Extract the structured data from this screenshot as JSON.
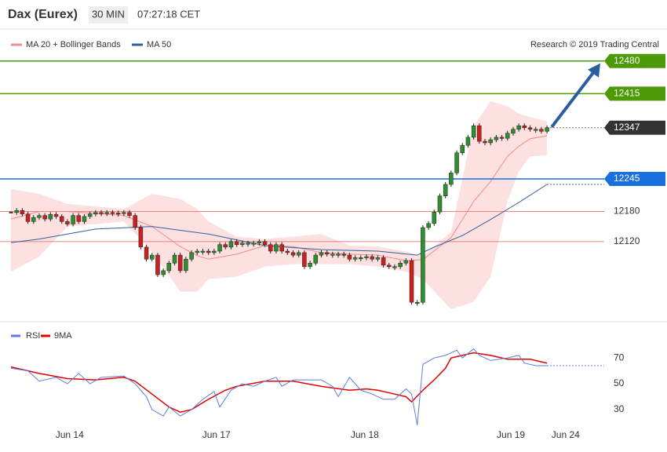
{
  "header": {
    "title": "Dax (Eurex)",
    "interval": "30 MIN",
    "time": "07:27:18 CET",
    "credit": "Research © 2019 Trading Central"
  },
  "chart_data": [
    {
      "type": "candlestick",
      "values": [
        12178,
        12182,
        12175,
        12160,
        12168,
        12172,
        12165,
        12174,
        12170,
        12160,
        12155,
        12172,
        12160,
        12170,
        12175,
        12178,
        12176,
        12178,
        12177,
        12176,
        12178,
        12172,
        12148,
        12109,
        12085,
        12093,
        12054,
        12062,
        12077,
        12093,
        12062,
        12085,
        12098,
        12101,
        12101,
        12098,
        12101,
        12114,
        12109,
        12120,
        12114,
        12117,
        12117,
        12117,
        12120,
        12114,
        12101,
        12114,
        12101,
        12098,
        12093,
        12098,
        12070,
        12077,
        12093,
        12098,
        12095,
        12095,
        12095,
        12093,
        12085,
        12088,
        12088,
        12090,
        12085,
        12088,
        12073,
        12070,
        12070,
        12077,
        12082,
        11999,
        11999,
        12148,
        12156,
        12179,
        12211,
        12234,
        12257,
        12297,
        12312,
        12328,
        12351,
        12320,
        12317,
        12323,
        12328,
        12326,
        12336,
        12344,
        12351,
        12347,
        12344,
        12344,
        12340,
        12347
      ],
      "up_color": "#2f8f2f",
      "down_color": "#cc1f1f",
      "band": {
        "name": "MA 20 + Bollinger Bands",
        "color": "#f28b8b",
        "fill": "#fde0e0",
        "x": [
          0,
          5,
          10,
          20,
          25,
          30,
          33,
          35,
          40,
          45,
          50,
          55,
          60,
          65,
          70,
          73,
          78,
          82,
          85,
          88,
          90,
          92,
          95
        ],
        "upper": [
          12225,
          12215,
          12195,
          12185,
          12215,
          12205,
          12185,
          12160,
          12130,
          12125,
          12130,
          12135,
          12112,
          12110,
          12100,
          12090,
          12140,
          12350,
          12400,
          12390,
          12375,
          12368,
          12360
        ],
        "lower": [
          12060,
          12090,
          12150,
          12160,
          12100,
          12020,
          12020,
          12045,
          12050,
          12070,
          12075,
          12075,
          12075,
          12070,
          12060,
          12045,
          11985,
          12000,
          12050,
          12200,
          12260,
          12290,
          12292
        ],
        "values": [
          12165,
          12180,
          12180,
          12172,
          12150,
          12110,
          12092,
          12085,
          12095,
          12112,
          12110,
          12098,
          12095,
          12093,
          12082,
          12084,
          12128,
          12200,
          12240,
          12290,
          12310,
          12325,
          12331
        ]
      },
      "ma": {
        "name": "MA 50",
        "color": "#2f5f9f",
        "x": [
          0,
          5,
          15,
          25,
          35,
          45,
          55,
          65,
          72,
          75,
          80,
          85,
          90,
          95
        ],
        "values": [
          12118,
          12125,
          12145,
          12150,
          12135,
          12112,
          12104,
          12101,
          12093,
          12109,
          12132,
          12164,
          12198,
          12234
        ]
      },
      "levels": [
        {
          "value": 12480,
          "color": "#4d9a06",
          "style": "solid"
        },
        {
          "value": 12415,
          "color": "#4d9a06",
          "style": "solid"
        },
        {
          "value": 12347,
          "color": "#333333",
          "style": "dotted"
        },
        {
          "value": 12245,
          "color": "#1a6fdf",
          "style": "solid"
        },
        {
          "value": 12180,
          "color": "#f08080",
          "style": "solid"
        },
        {
          "value": 12120,
          "color": "#f08080",
          "style": "solid"
        }
      ],
      "target": 12480,
      "ylim": [
        11968,
        12500
      ],
      "xlim": [
        0,
        105
      ]
    },
    {
      "type": "line",
      "series": [
        {
          "name": "RSI",
          "color": "#5b7fe0",
          "x": [
            0,
            3,
            5,
            8,
            10,
            12,
            14,
            16,
            20,
            22,
            24,
            25,
            27,
            28,
            30,
            32,
            34,
            36,
            37,
            39,
            41,
            43,
            45,
            47,
            48,
            50,
            52,
            55,
            57,
            58,
            60,
            62,
            64,
            66,
            68,
            70,
            71,
            72,
            73,
            75,
            77,
            79,
            80,
            82,
            83,
            85,
            88,
            90,
            91,
            93,
            95
          ],
          "values": [
            62,
            60,
            52,
            55,
            50,
            58,
            50,
            55,
            56,
            50,
            40,
            30,
            25,
            32,
            25,
            30,
            38,
            44,
            32,
            45,
            50,
            48,
            52,
            55,
            48,
            53,
            53,
            53,
            48,
            40,
            55,
            45,
            42,
            38,
            38,
            46,
            42,
            18,
            65,
            70,
            72,
            76,
            70,
            77,
            72,
            68,
            70,
            72,
            66,
            64,
            64
          ]
        },
        {
          "name": "9MA",
          "color": "#e00000",
          "x": [
            0,
            5,
            10,
            15,
            20,
            22,
            25,
            28,
            30,
            32,
            35,
            38,
            40,
            45,
            50,
            55,
            60,
            63,
            65,
            68,
            70,
            71,
            73,
            75,
            77,
            78,
            80,
            82,
            85,
            88,
            92,
            95
          ],
          "values": [
            63,
            58,
            54,
            53,
            55,
            52,
            42,
            32,
            28,
            30,
            38,
            45,
            48,
            52,
            52,
            48,
            45,
            46,
            45,
            42,
            40,
            36,
            45,
            53,
            62,
            70,
            72,
            74,
            72,
            69,
            69,
            66
          ]
        }
      ],
      "ylim": [
        2,
        95
      ],
      "xlim": [
        0,
        105
      ],
      "yticks": [
        30,
        50,
        70
      ],
      "xticks": [
        {
          "value": 10.4,
          "label": "Jun 14"
        },
        {
          "value": 36.4,
          "label": "Jun 17"
        },
        {
          "value": 62.7,
          "label": "Jun 18"
        },
        {
          "value": 88.6,
          "label": "Jun 19"
        },
        {
          "value": 98.3,
          "label": "Jun 24"
        }
      ]
    }
  ]
}
